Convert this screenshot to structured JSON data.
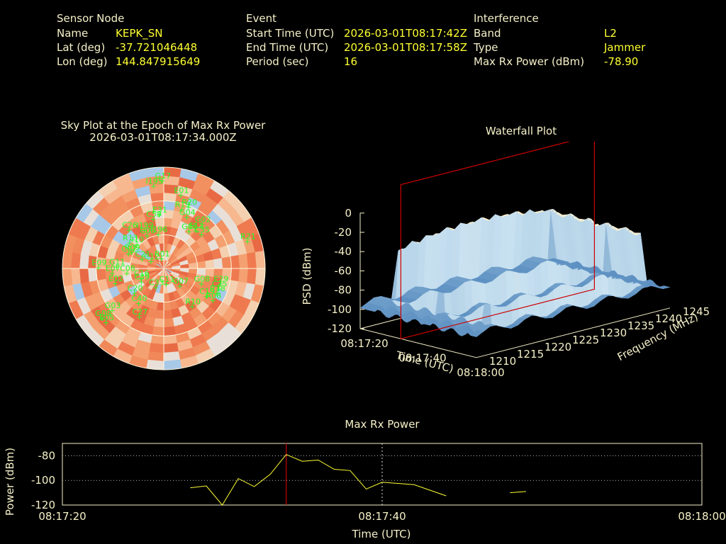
{
  "header": {
    "sensor": {
      "title": "Sensor Node",
      "rows": [
        {
          "label": "Name",
          "value": "KEPK_SN"
        },
        {
          "label": "Lat (deg)",
          "value": "-37.721046448"
        },
        {
          "label": "Lon (deg)",
          "value": "144.847915649"
        }
      ]
    },
    "event": {
      "title": "Event",
      "rows": [
        {
          "label": "Start Time (UTC)",
          "value": "2026-03-01T08:17:42Z"
        },
        {
          "label": "End Time (UTC)",
          "value": "2026-03-01T08:17:58Z"
        },
        {
          "label": "Period (sec)",
          "value": "16"
        }
      ]
    },
    "interference": {
      "title": "Interference",
      "rows": [
        {
          "label": "Band",
          "value": "L2"
        },
        {
          "label": "Type",
          "value": "Jammer"
        },
        {
          "label": "Max Rx Power (dBm)",
          "value": "-78.90"
        }
      ]
    }
  },
  "colors": {
    "text": "#f5f0c8",
    "value": "#ffff33",
    "satellite": "#22ff22",
    "marker": "#cc0000",
    "trace": "#ffff33"
  },
  "chart_data": [
    {
      "type": "scatter",
      "subtype": "polar-sky-plot",
      "title": "Sky Plot at the Epoch of Max Rx Power",
      "subtitle": "2026-03-01T08:17:34.000Z",
      "satellites": [
        {
          "id": "G17",
          "az": 359,
          "el": 78
        },
        {
          "id": "I195",
          "az": 353,
          "el": 74
        },
        {
          "id": "E01",
          "az": 13,
          "el": 67
        },
        {
          "id": "R20",
          "az": 22,
          "el": 59
        },
        {
          "id": "R19",
          "az": 17,
          "el": 55
        },
        {
          "id": "G04",
          "az": 24,
          "el": 50
        },
        {
          "id": "G02",
          "az": 41,
          "el": 52
        },
        {
          "id": "E12",
          "az": 40,
          "el": 44
        },
        {
          "id": "C35",
          "az": 48,
          "el": 45
        },
        {
          "id": "G06",
          "az": 34,
          "el": 40
        },
        {
          "id": "E31",
          "az": 355,
          "el": 48
        },
        {
          "id": "C59",
          "az": 348,
          "el": 45
        },
        {
          "id": "I199",
          "az": 333,
          "el": 38
        },
        {
          "id": "C06",
          "az": 333,
          "el": 33
        },
        {
          "id": "I196",
          "az": 351,
          "el": 31
        },
        {
          "id": "R13",
          "az": 307,
          "el": 38
        },
        {
          "id": "C26",
          "az": 318,
          "el": 46
        },
        {
          "id": "I10",
          "az": 312,
          "el": 32
        },
        {
          "id": "R09",
          "az": 297,
          "el": 32
        },
        {
          "id": "C02",
          "az": 293,
          "el": 34
        },
        {
          "id": "C21",
          "az": 294,
          "el": 21
        },
        {
          "id": "C12",
          "az": 299,
          "el": 13
        },
        {
          "id": "R01",
          "az": 347,
          "el": 9
        },
        {
          "id": "E09",
          "az": 271,
          "el": 58
        },
        {
          "id": "G11",
          "az": 272,
          "el": 42
        },
        {
          "id": "E07",
          "az": 265,
          "el": 46
        },
        {
          "id": "C08",
          "az": 263,
          "el": 33
        },
        {
          "id": "C16",
          "az": 247,
          "el": 22
        },
        {
          "id": "C39",
          "az": 240,
          "el": 23
        },
        {
          "id": "C20",
          "az": 230,
          "el": 34
        },
        {
          "id": "C33",
          "az": 203,
          "el": 18
        },
        {
          "id": "C11",
          "az": 171,
          "el": 14
        },
        {
          "id": "G07",
          "az": 137,
          "el": 21
        },
        {
          "id": "G08",
          "az": 112,
          "el": 36
        },
        {
          "id": "C19",
          "az": 123,
          "el": 45
        },
        {
          "id": "E29",
          "az": 105,
          "el": 52
        },
        {
          "id": "C25",
          "az": 110,
          "el": 52
        },
        {
          "id": "R18",
          "az": 115,
          "el": 52
        },
        {
          "id": "R08",
          "az": 123,
          "el": 52
        },
        {
          "id": "R10",
          "az": 143,
          "el": 42
        },
        {
          "id": "G03",
          "az": 231,
          "el": 59
        },
        {
          "id": "E05",
          "az": 227,
          "el": 70
        },
        {
          "id": "C40",
          "az": 216,
          "el": 38
        },
        {
          "id": "G09",
          "az": 231,
          "el": 70
        },
        {
          "id": "R21",
          "az": 72,
          "el": 78
        },
        {
          "id": "E02",
          "az": 253,
          "el": 45
        },
        {
          "id": "C27",
          "az": 207,
          "el": 48
        }
      ]
    },
    {
      "type": "surface",
      "title": "Waterfall Plot",
      "xlabel": "Time (UTC)",
      "ylabel": "Frequency (MHz)",
      "zlabel": "PSD (dBm)",
      "x_ticks": [
        "08:17:20",
        "08:17:40",
        "08:18:00"
      ],
      "y_ticks": [
        1210,
        1215,
        1220,
        1225,
        1230,
        1235,
        1240,
        1245
      ],
      "z_ticks": [
        0,
        -20,
        -40,
        -60,
        -80,
        -100,
        -120
      ],
      "zlim": [
        -120,
        0
      ],
      "marker_time": "08:17:34"
    },
    {
      "type": "line",
      "title": "Max Rx Power",
      "xlabel": "Time (UTC)",
      "ylabel": "Power (dBm)",
      "x_ticks": [
        "08:17:20",
        "08:17:40",
        "08:18:00"
      ],
      "y_ticks": [
        -80,
        -100,
        -120
      ],
      "xlim": [
        0,
        40
      ],
      "ylim": [
        -120,
        -70
      ],
      "marker_t": 14,
      "segments": [
        [
          [
            8,
            -106
          ],
          [
            9,
            -104.5
          ],
          [
            10,
            -120
          ],
          [
            11,
            -98.5
          ],
          [
            12,
            -105
          ],
          [
            13,
            -95
          ],
          [
            14,
            -79
          ],
          [
            15,
            -84.5
          ],
          [
            16,
            -83.5
          ],
          [
            17,
            -91
          ],
          [
            18,
            -92
          ],
          [
            19,
            -107
          ],
          [
            20,
            -101.5
          ],
          [
            21,
            -102.5
          ],
          [
            22,
            -103.5
          ],
          [
            24,
            -112.5
          ]
        ],
        [
          [
            28,
            -110
          ],
          [
            29,
            -109
          ]
        ]
      ]
    }
  ]
}
